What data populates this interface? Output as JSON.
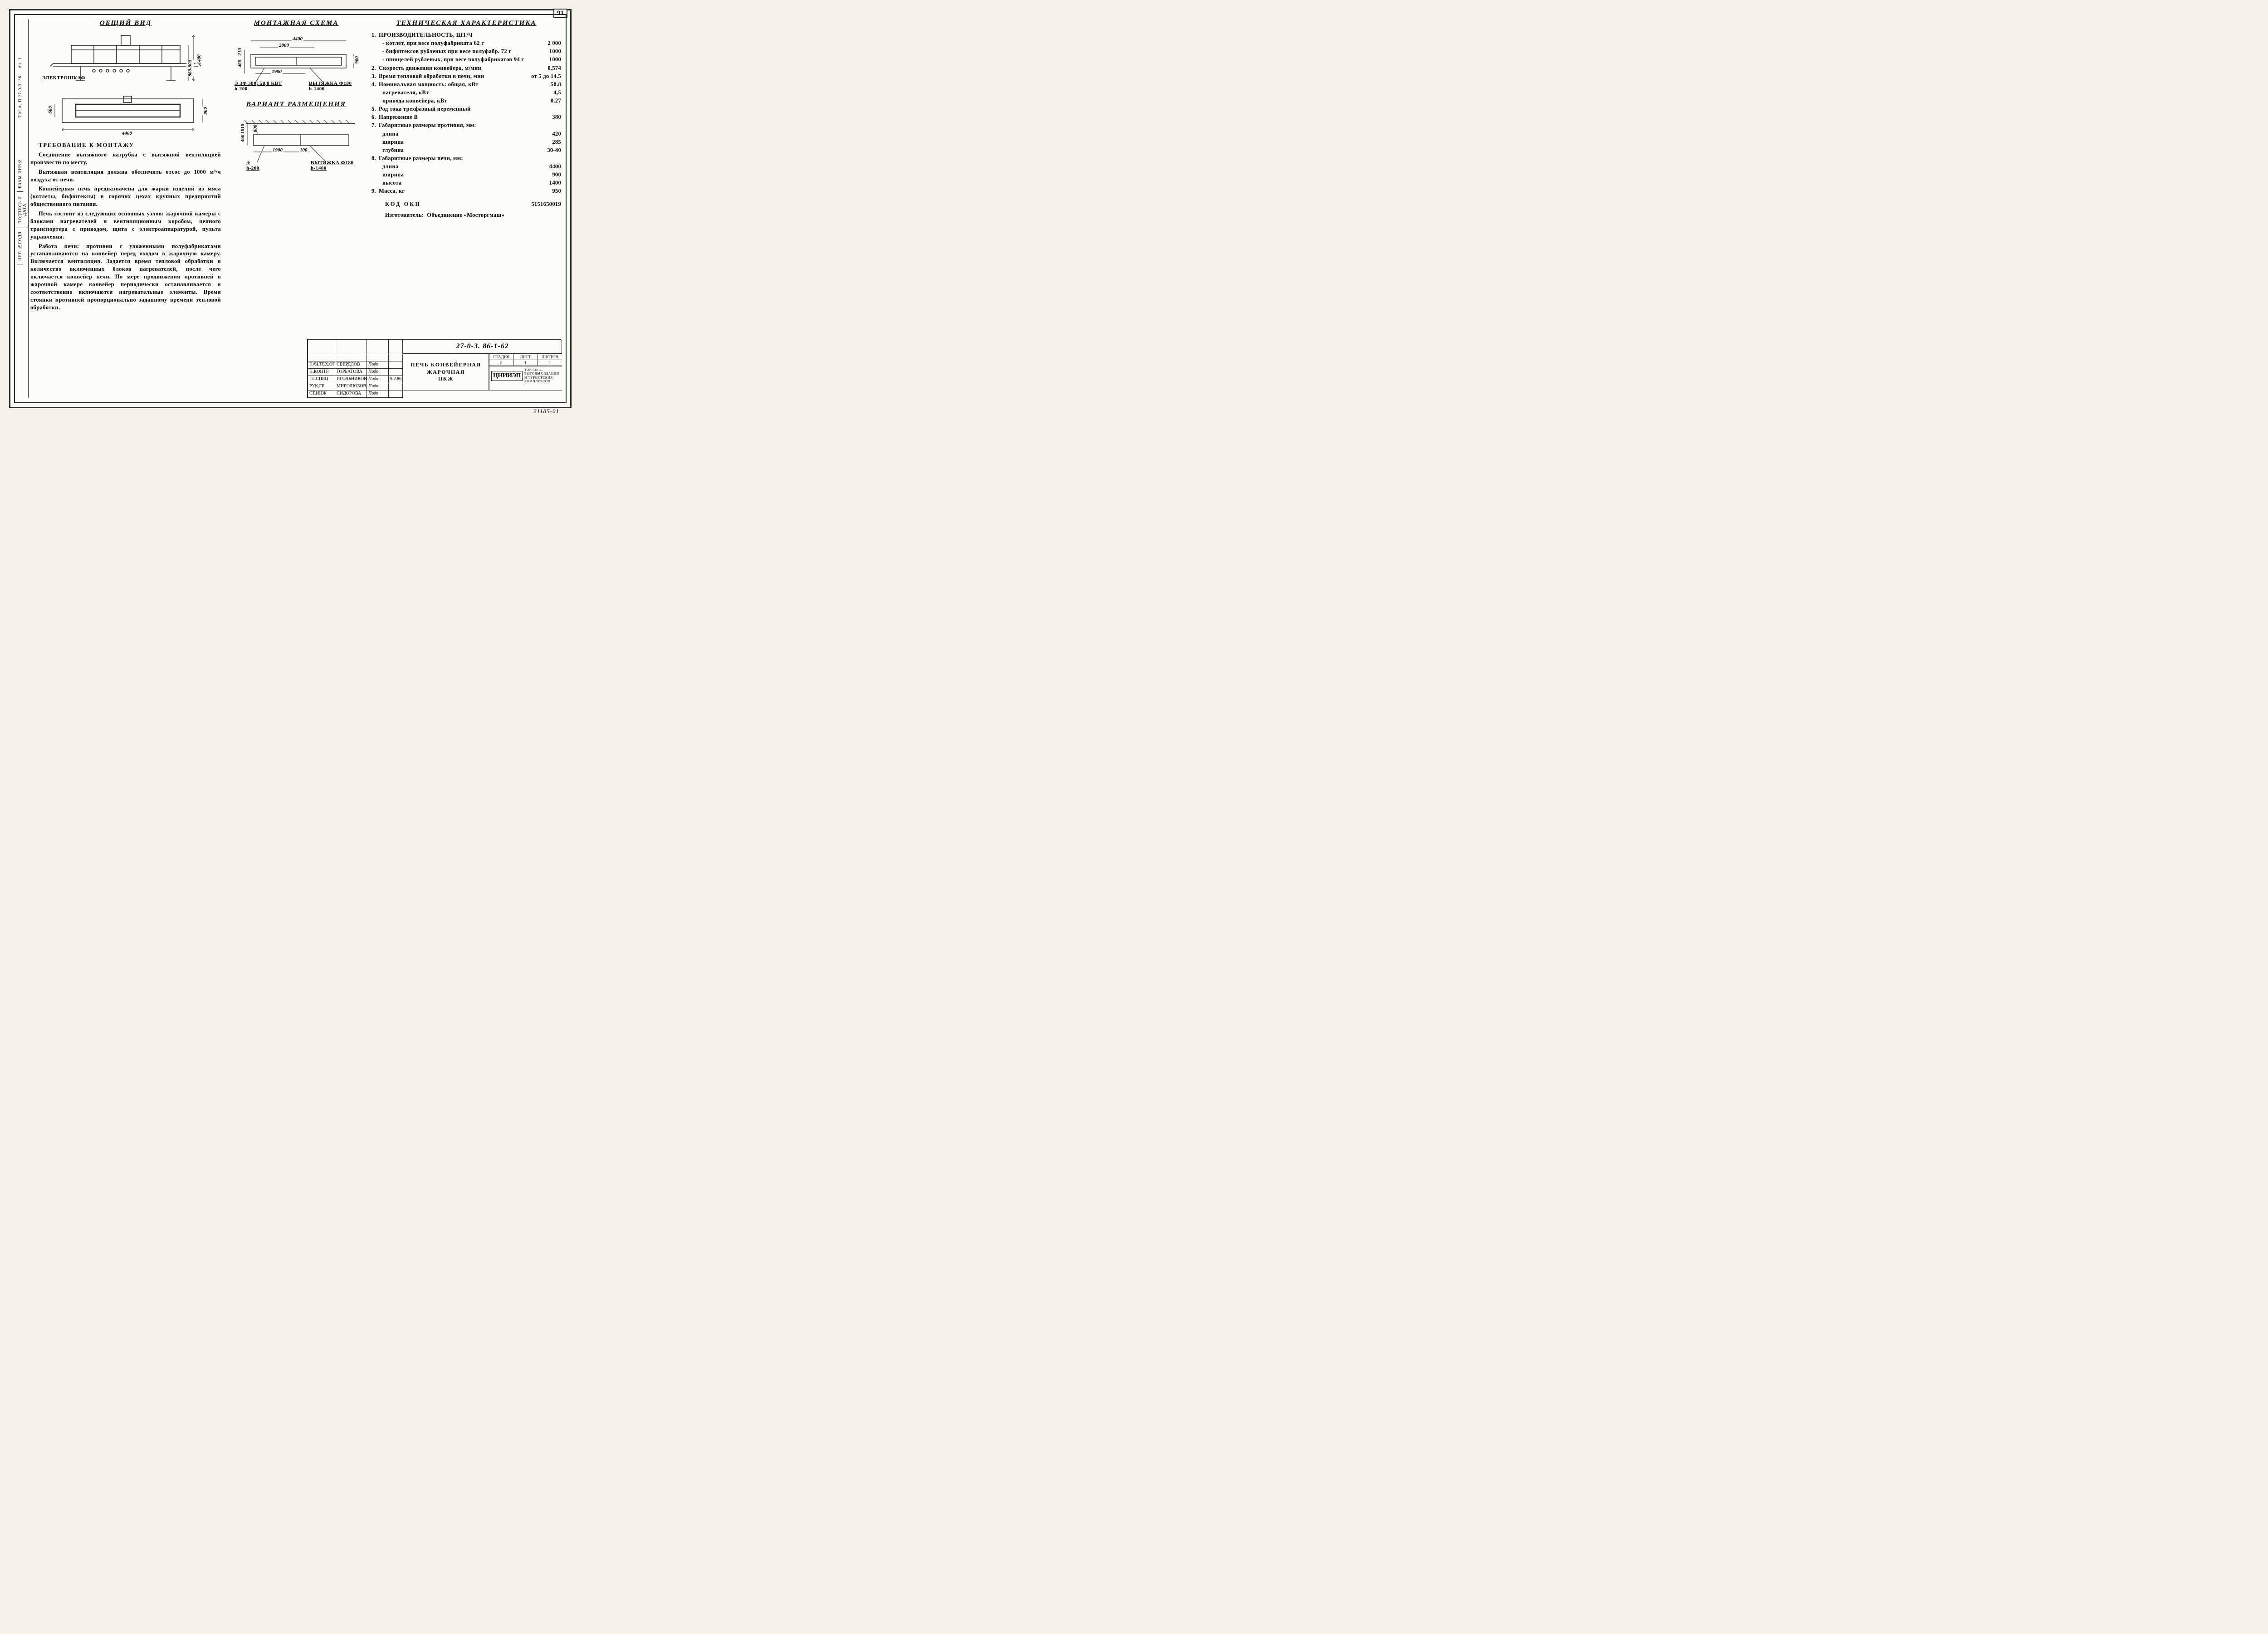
{
  "page_number": "91",
  "left_strip": {
    "top": "Т.М.А. П 27-0-3. 86",
    "al": "Ал. I",
    "cells": [
      "ИНВ.№ПОДЛ",
      "ПОДПИСЬ И ДАТА",
      "ВЗАМ ИНВ№"
    ]
  },
  "col1": {
    "title": "ОБЩИЙ ВИД",
    "side_view": {
      "length": "4400",
      "height": "860-900",
      "total_h": "1400",
      "cabinet_label": "ЭЛЕКТРОШКАФ"
    },
    "plan_view": {
      "length": "4400",
      "width": "900",
      "inner": "680"
    },
    "notes_title": "ТРЕБОВАНИЕ К МОНТАЖУ",
    "notes": [
      "Соединение вытяжного патрубка с вытяжной вентиляцией произвести по месту.",
      "Вытяжная вентиляция должна обеспечить отсос до 1000 м³/ч воздуха от печи.",
      "Конвейерная печь предназначена для жарки изделий из мяса (котлеты, бифштексы) в горячих цехах крупных предприятий общественного питания.",
      "Печь состоит из следующих основных узлов: жарочной камеры с блоками нагревателей и вентиляционным коробом, цепного транспортера с приводом, щита с электроаппаратурой, пульта управления.",
      "Работа печи: противни с уложенными полуфабрикатами устанавливаются на конвейер перед входом в жарочную камеру. Включается вентиляция. Задается время тепловой обработки и количество включенных блоков нагревателей, после чего включается конвейер печи. По мере продвижения противней в жарочной камере конвейер периодически останавливается и соответственно включаются нагревательные элементы. Время стоянки противней пропорционально заданному времени тепловой обработки."
    ]
  },
  "col2": {
    "scheme_title": "МОНТАЖНАЯ СХЕМА",
    "scheme": {
      "L": "4400",
      "L2": "2000",
      "L3": "1900",
      "h1": "210",
      "h2": "460",
      "w": "900",
      "power_label": "Э 3Ф 380; 58,8 КВТ",
      "power_h": "h-200",
      "exhaust_label": "ВЫТЯЖКА Ф180",
      "exhaust_h": "h-1400"
    },
    "placement_title": "ВАРИАНТ РАЗМЕЩЕНИЯ",
    "placement": {
      "d1": "1900",
      "d2": "100",
      "h1": "460",
      "h2": "1010",
      "h3": "800",
      "power_label": "Э",
      "power_h": "h-200",
      "exhaust_label": "ВЫТЯЖКА Ф180",
      "exhaust_h": "h-1400"
    }
  },
  "col3": {
    "title": "ТЕХНИЧЕСКАЯ ХАРАКТЕРИСТИКА",
    "items": [
      {
        "n": "1.",
        "lbl": "ПРОИЗВОДИТЕЛЬНОСТЬ, ШТ/Ч",
        "val": ""
      },
      {
        "n": "",
        "lbl": "- котлет, при весе полуфабриката 62 г",
        "val": "2 000",
        "sub": true
      },
      {
        "n": "",
        "lbl": "- бифштексов рубленых при весе полуфабр. 72 г",
        "val": "1000",
        "sub": true
      },
      {
        "n": "",
        "lbl": "- шницелей рубленых, при весе полуфабрикатов 94 г",
        "val": "1000",
        "sub": true
      },
      {
        "n": "2.",
        "lbl": "Скорость движения конвейера, м/мин",
        "val": "0.574"
      },
      {
        "n": "3.",
        "lbl": "Время тепловой обработки в печи, мин",
        "val": "от 5 до 14.5"
      },
      {
        "n": "4.",
        "lbl": "Номинальная мощность: общая, кВт",
        "val": "58.8"
      },
      {
        "n": "",
        "lbl": "нагревателя, кВт",
        "val": "4,5",
        "sub": true
      },
      {
        "n": "",
        "lbl": "привода конвейера, кВт",
        "val": "0.27",
        "sub": true
      },
      {
        "n": "5.",
        "lbl": "Род тока трехфазный переменный",
        "val": ""
      },
      {
        "n": "6.",
        "lbl": "Напряжение В",
        "val": "380"
      },
      {
        "n": "7.",
        "lbl": "Габаритные размеры противня, мм:",
        "val": ""
      },
      {
        "n": "",
        "lbl": "длина",
        "val": "420",
        "sub": true
      },
      {
        "n": "",
        "lbl": "ширина",
        "val": "285",
        "sub": true
      },
      {
        "n": "",
        "lbl": "глубина",
        "val": "30-40",
        "sub": true
      },
      {
        "n": "8.",
        "lbl": "Габаритные размеры печи, мм:",
        "val": ""
      },
      {
        "n": "",
        "lbl": "длина",
        "val": "4400",
        "sub": true
      },
      {
        "n": "",
        "lbl": "ширина",
        "val": "900",
        "sub": true
      },
      {
        "n": "",
        "lbl": "высота",
        "val": "1400",
        "sub": true
      },
      {
        "n": "9.",
        "lbl": "Масса, кг",
        "val": "950"
      }
    ],
    "okp_label": "КОД ОКП",
    "okp": "5151650019",
    "maker_label": "Изготовитель:",
    "maker": "Объединение «Мосторгмаш»"
  },
  "titleblock": {
    "docnum": "27-0-3. 86-1-62",
    "title_lines": [
      "ПЕЧЬ КОНВЕЙЕРНАЯ",
      "ЖАРОЧНАЯ",
      "ПКЖ"
    ],
    "rows": [
      {
        "role": "НАЧ.ТЕХ.ОТД",
        "name": "СВЕРДЛОВ",
        "sig": "Подп",
        "date": ""
      },
      {
        "role": "Н.КОНТР",
        "name": "ГОРБАТОВА",
        "sig": "Подп",
        "date": ""
      },
      {
        "role": "ГЛ.СПЕЦ",
        "name": "ИГОЛЬНИКОВА",
        "sig": "Подп",
        "date": "9.2.86"
      },
      {
        "role": "РУК.ГР",
        "name": "МИРОЛЮБОВА",
        "sig": "Подп",
        "date": ""
      },
      {
        "role": "СТ.ИНЖ",
        "name": "СИДОРОВА",
        "sig": "Подп",
        "date": ""
      }
    ],
    "stage_hdr": [
      "СТАДИЯ",
      "ЛИСТ",
      "ЛИСТОВ"
    ],
    "stage_val": [
      "Р",
      "1",
      "1"
    ],
    "org_logo": "ЦНИИЭП",
    "org_txt": "ТОРГОВО-БЫТОВЫХ ЗДАНИЙ И ТУРИСТСКИХ КОМПЛЕКСОВ"
  },
  "footer_code": "21185-01",
  "colors": {
    "ink": "#2a2a2a",
    "paper": "#fdfcf7"
  }
}
